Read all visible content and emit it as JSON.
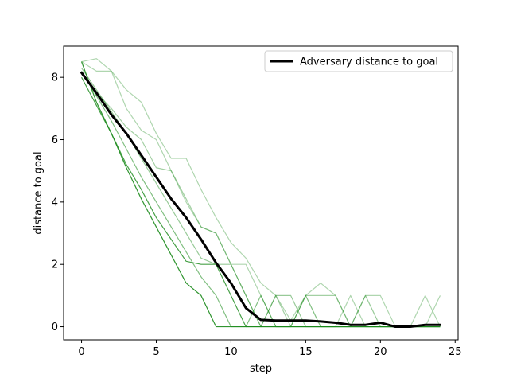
{
  "chart_data": {
    "type": "line",
    "title": "",
    "xlabel": "step",
    "ylabel": "distance to goal",
    "xlim": [
      -1.2,
      25.2
    ],
    "ylim": [
      -0.42,
      9.0
    ],
    "xticks": [
      0,
      5,
      10,
      15,
      20,
      25
    ],
    "yticks": [
      0,
      2,
      4,
      6,
      8
    ],
    "grid": false,
    "legend": {
      "placement": "top-right",
      "entries": [
        "Adversary distance to goal"
      ]
    },
    "colors": {
      "mean": "#000000",
      "episodes": "#1a8a1a"
    },
    "episodes": [
      {
        "values": [
          8.5,
          7.2,
          6.2,
          5.1,
          4.1,
          3.2,
          2.3,
          1.4,
          1.0,
          0,
          0,
          0,
          0,
          0,
          0,
          0,
          0,
          0,
          0,
          0,
          0,
          0,
          0,
          0,
          0
        ],
        "x_start": 2,
        "opacity": 0.9
      },
      {
        "values": [
          8.0,
          7.1,
          6.2,
          5.2,
          4.4,
          3.5,
          2.8,
          2.1,
          2.0,
          2.0,
          1.0,
          0,
          0,
          0,
          0,
          0,
          0,
          0,
          0,
          0,
          0,
          0,
          0,
          0,
          0
        ],
        "opacity": 0.8
      },
      {
        "values": [
          8.2,
          7.4,
          6.6,
          5.7,
          4.8,
          4.0,
          3.2,
          2.4,
          1.6,
          1.0,
          0,
          0,
          1.0,
          0,
          0,
          1.0,
          0,
          0,
          0,
          0,
          0,
          0,
          0,
          0,
          0
        ],
        "opacity": 0.55
      },
      {
        "values": [
          8.3,
          7.6,
          6.9,
          6.2,
          5.4,
          4.6,
          3.8,
          3.0,
          2.2,
          2.0,
          2.0,
          1.0,
          0,
          1.0,
          1.0,
          0,
          0,
          0,
          0,
          1.0,
          0,
          0,
          0,
          0,
          0
        ],
        "opacity": 0.45
      },
      {
        "values": [
          8.1,
          7.5,
          7.0,
          6.4,
          6.0,
          5.1,
          5.0,
          4.1,
          3.2,
          3.0,
          2.0,
          1.0,
          0,
          1.0,
          0,
          1.0,
          1.0,
          1.0,
          0,
          0,
          0,
          0,
          0,
          0,
          0
        ],
        "opacity": 0.4
      },
      {
        "values": [
          8.5,
          8.6,
          8.2,
          7.6,
          7.2,
          6.2,
          5.4,
          5.4,
          4.4,
          3.5,
          2.7,
          2.2,
          1.4,
          1.0,
          0.2,
          1.0,
          1.4,
          1.0,
          0,
          1.0,
          1.0,
          0,
          0,
          1.0,
          0
        ],
        "opacity": 0.35
      },
      {
        "values": [
          8.5,
          8.2,
          8.2,
          7.0,
          6.3,
          6.0,
          5.0,
          4.0,
          3.2,
          3.0,
          2.0,
          2.0,
          1.0,
          0,
          0,
          0,
          0,
          0,
          1.0,
          0,
          0,
          0,
          0,
          0,
          1.0
        ],
        "opacity": 0.35
      }
    ],
    "series": [
      {
        "name": "Adversary distance to goal",
        "x": [
          0,
          1,
          2,
          3,
          4,
          5,
          6,
          7,
          8,
          9,
          10,
          11,
          12,
          13,
          14,
          15,
          16,
          17,
          18,
          19,
          20,
          21,
          22,
          23,
          24
        ],
        "values": [
          8.15,
          7.5,
          6.8,
          6.2,
          5.5,
          4.8,
          4.1,
          3.5,
          2.8,
          2.05,
          1.4,
          0.6,
          0.22,
          0.2,
          0.2,
          0.2,
          0.17,
          0.13,
          0.06,
          0.06,
          0.13,
          0.0,
          0.0,
          0.06,
          0.06
        ]
      }
    ]
  }
}
